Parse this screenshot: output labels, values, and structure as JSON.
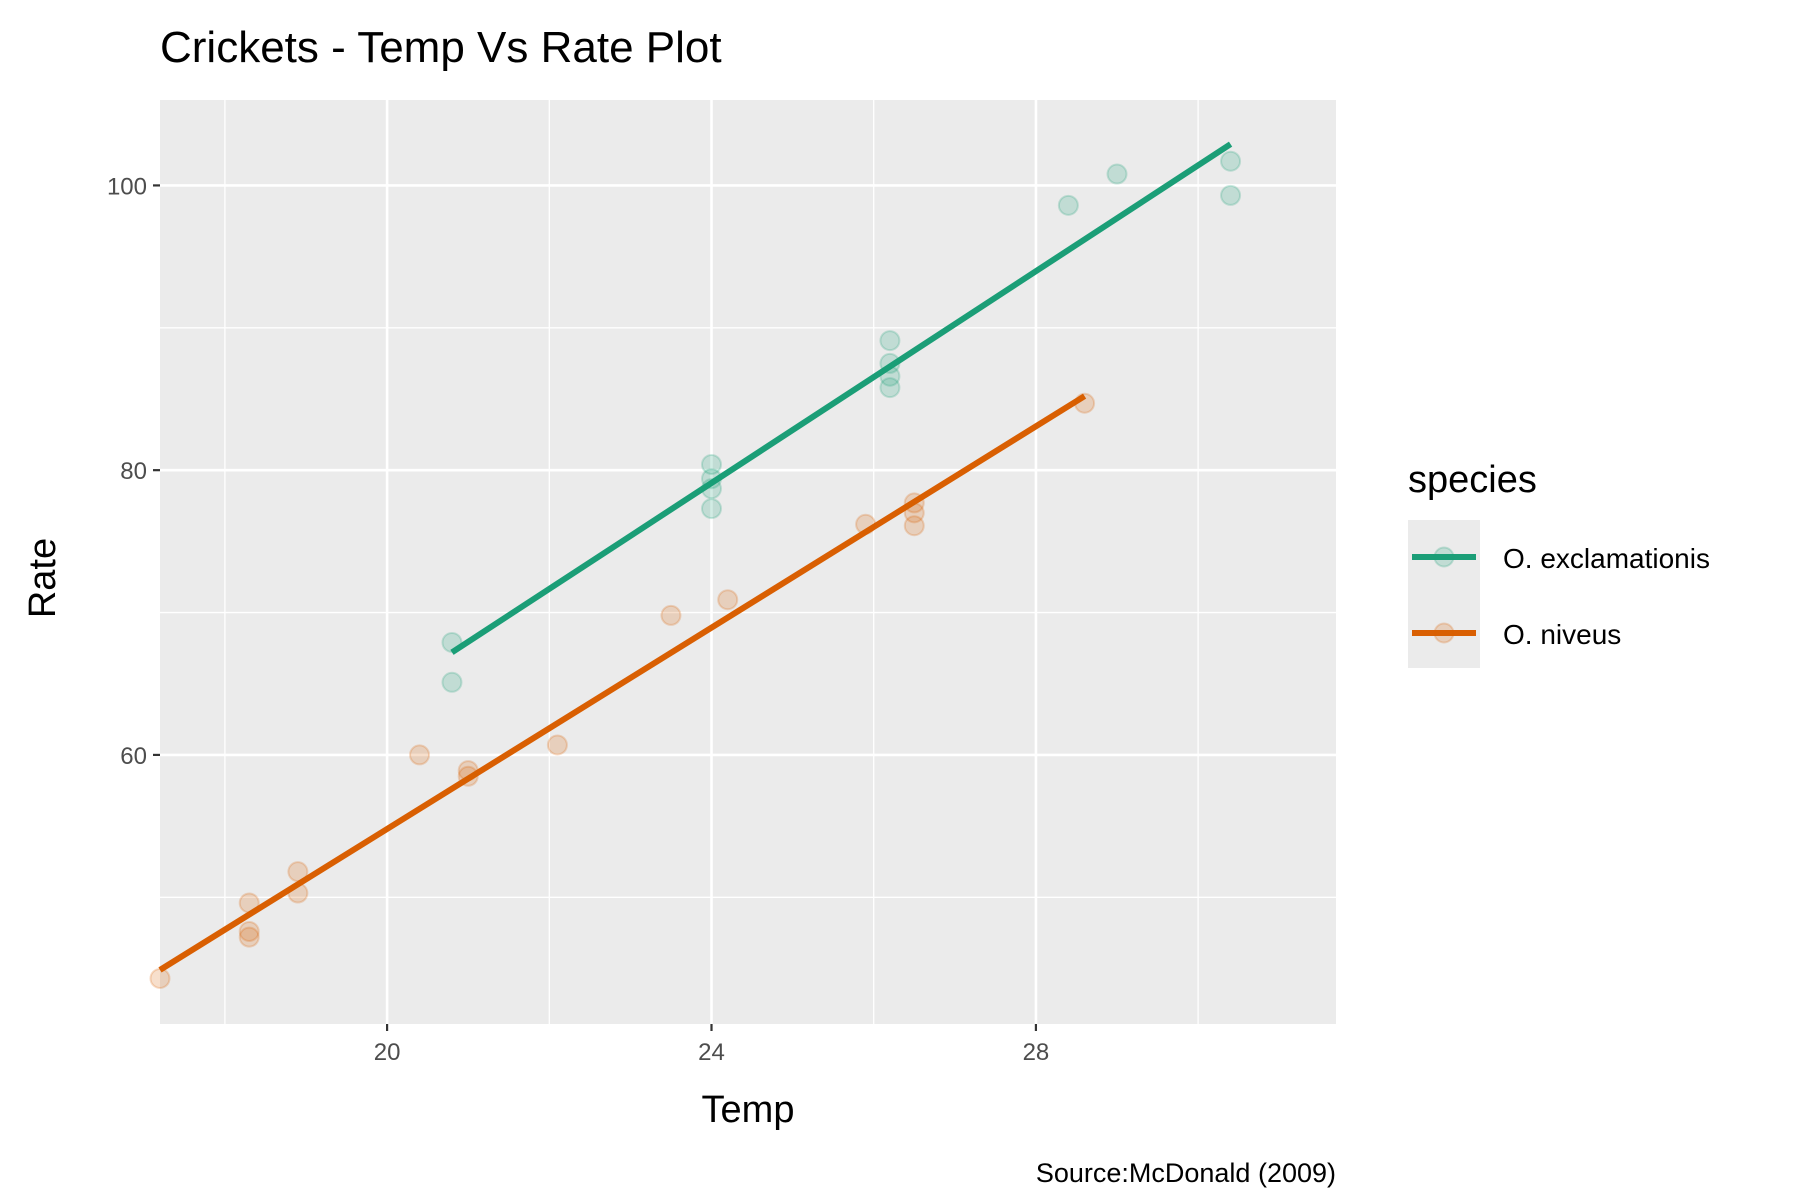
{
  "chart_data": {
    "type": "scatter",
    "title": "Crickets - Temp Vs Rate Plot",
    "xlabel": "Temp",
    "ylabel": "Rate",
    "caption": "Source:McDonald (2009)",
    "xlim": [
      17.2,
      31.7
    ],
    "ylim": [
      41.1,
      106
    ],
    "x_ticks": [
      20,
      24,
      28
    ],
    "x_tick_labels": [
      "20",
      "24",
      "28"
    ],
    "y_ticks": [
      60,
      80,
      100
    ],
    "y_tick_labels": [
      "60",
      "80",
      "100"
    ],
    "grid": true,
    "legend": {
      "title": "species",
      "position": "right"
    },
    "series": [
      {
        "name": "O. exclamationis",
        "color": "#1b9e77",
        "points": [
          [
            20.8,
            67.9
          ],
          [
            20.8,
            65.1
          ],
          [
            24.0,
            77.3
          ],
          [
            24.0,
            78.7
          ],
          [
            24.0,
            79.4
          ],
          [
            24.0,
            80.4
          ],
          [
            26.2,
            85.8
          ],
          [
            26.2,
            86.6
          ],
          [
            26.2,
            87.5
          ],
          [
            26.2,
            89.1
          ],
          [
            28.4,
            98.6
          ],
          [
            29.0,
            100.8
          ],
          [
            30.4,
            99.3
          ],
          [
            30.4,
            101.7
          ]
        ],
        "fit": [
          [
            20.8,
            67.2
          ],
          [
            30.4,
            102.9
          ]
        ]
      },
      {
        "name": "O. niveus",
        "color": "#d95f02",
        "points": [
          [
            17.2,
            44.3
          ],
          [
            18.3,
            47.2
          ],
          [
            18.3,
            47.6
          ],
          [
            18.3,
            49.6
          ],
          [
            18.9,
            50.3
          ],
          [
            18.9,
            51.8
          ],
          [
            20.4,
            60.0
          ],
          [
            21.0,
            58.5
          ],
          [
            21.0,
            58.9
          ],
          [
            22.1,
            60.7
          ],
          [
            23.5,
            69.8
          ],
          [
            24.2,
            70.9
          ],
          [
            25.9,
            76.2
          ],
          [
            26.5,
            76.1
          ],
          [
            26.5,
            77.0
          ],
          [
            26.5,
            77.7
          ],
          [
            28.6,
            84.7
          ]
        ],
        "fit": [
          [
            17.2,
            44.9
          ],
          [
            28.6,
            85.2
          ]
        ]
      }
    ]
  }
}
